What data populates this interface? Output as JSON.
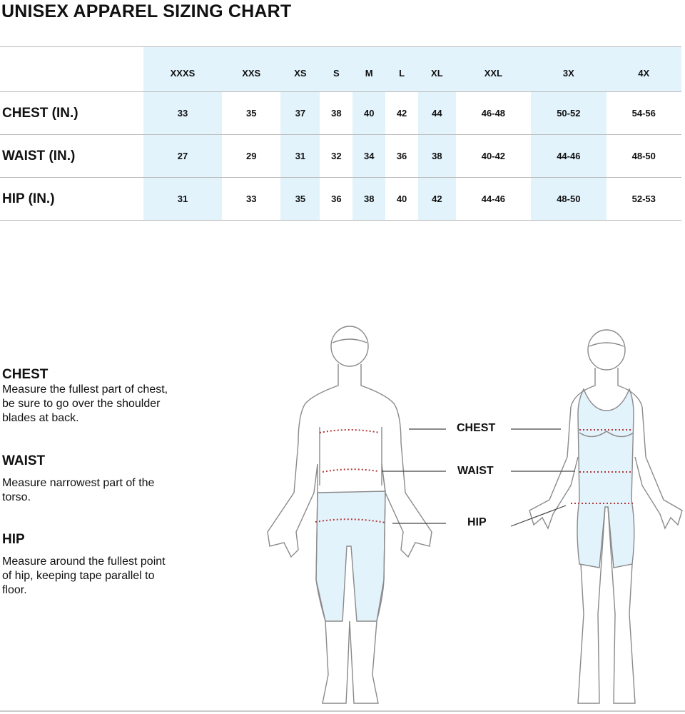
{
  "title": "UNISEX APPAREL SIZING CHART",
  "table": {
    "sizes": [
      "XXXS",
      "XXS",
      "XS",
      "S",
      "M",
      "L",
      "XL",
      "XXL",
      "3X",
      "4X"
    ],
    "rows": [
      {
        "label": "CHEST (IN.)",
        "values": [
          "33",
          "35",
          "37",
          "38",
          "40",
          "42",
          "44",
          "46-48",
          "50-52",
          "54-56"
        ]
      },
      {
        "label": "WAIST (IN.)",
        "values": [
          "27",
          "29",
          "31",
          "32",
          "34",
          "36",
          "38",
          "40-42",
          "44-46",
          "48-50"
        ]
      },
      {
        "label": "HIP (IN.)",
        "values": [
          "31",
          "33",
          "35",
          "36",
          "38",
          "40",
          "42",
          "44-46",
          "48-50",
          "52-53"
        ]
      }
    ]
  },
  "instructions": [
    {
      "heading": "CHEST",
      "text": "Measure the fullest part of chest, be sure to go over the shoulder blades at back."
    },
    {
      "heading": "WAIST",
      "text": "Measure narrowest part of the torso."
    },
    {
      "heading": "HIP",
      "text": "Measure around the fullest point of hip, keeping tape parallel to floor."
    }
  ],
  "figure_labels": {
    "chest": "CHEST",
    "waist": "WAIST",
    "hip": "HIP"
  },
  "colors": {
    "highlight": "#e3f3fc",
    "measure_line": "#b03a3a",
    "outline": "#8a8a8a"
  }
}
